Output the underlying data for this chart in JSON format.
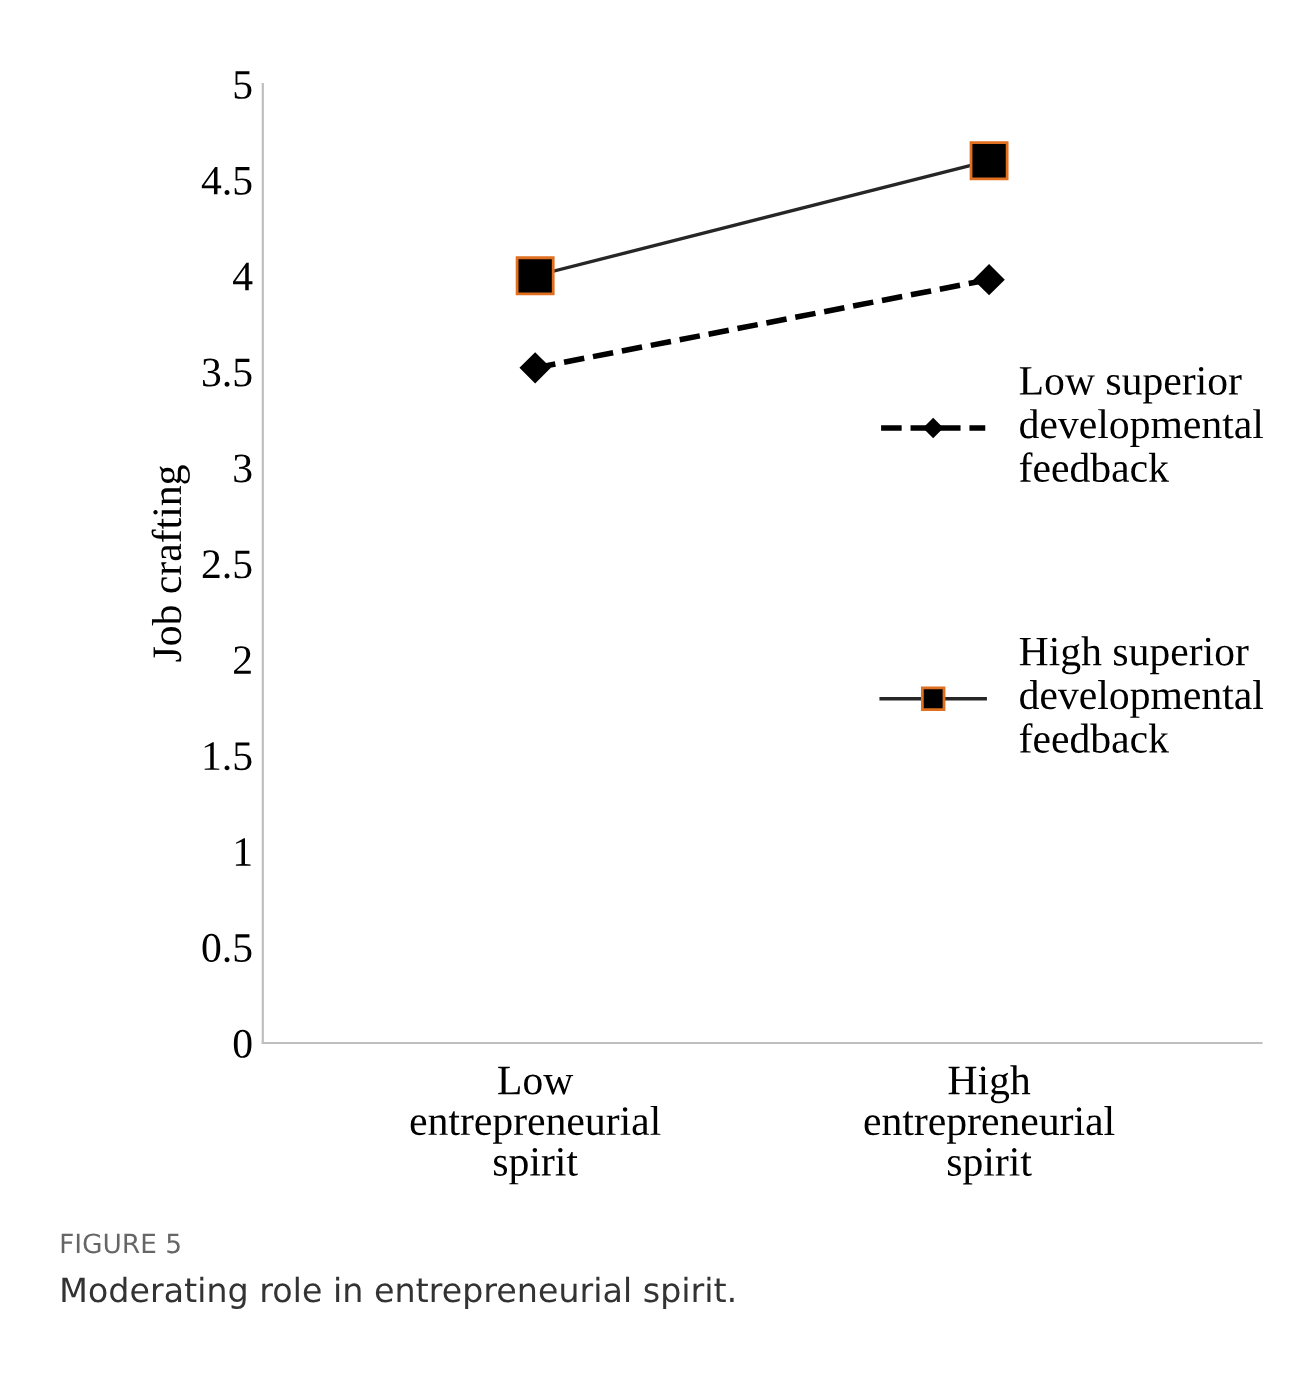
{
  "chart_data": {
    "type": "line",
    "categories": [
      "Low entrepreneurial spirit",
      "High entrepreneurial spirit"
    ],
    "ylabel": "Job crafting",
    "series": [
      {
        "name": "Low superior developmental feedback",
        "color": "#000000",
        "values": [
          3.52,
          3.98
        ],
        "marker": "diamond",
        "line_style": "dashed"
      },
      {
        "name": "High superior developmental feedback",
        "color": "#262626",
        "values": [
          4.0,
          4.6
        ],
        "marker": "square",
        "line_style": "solid"
      }
    ],
    "ylim": [
      0,
      5
    ],
    "yticks": [
      0,
      0.5,
      1,
      1.5,
      2,
      2.5,
      3,
      3.5,
      4,
      4.5,
      5
    ],
    "grid": false,
    "legend": "right",
    "annotations": [
      "FIGURE 5",
      "Moderating role in entrepreneurial spirit."
    ]
  }
}
